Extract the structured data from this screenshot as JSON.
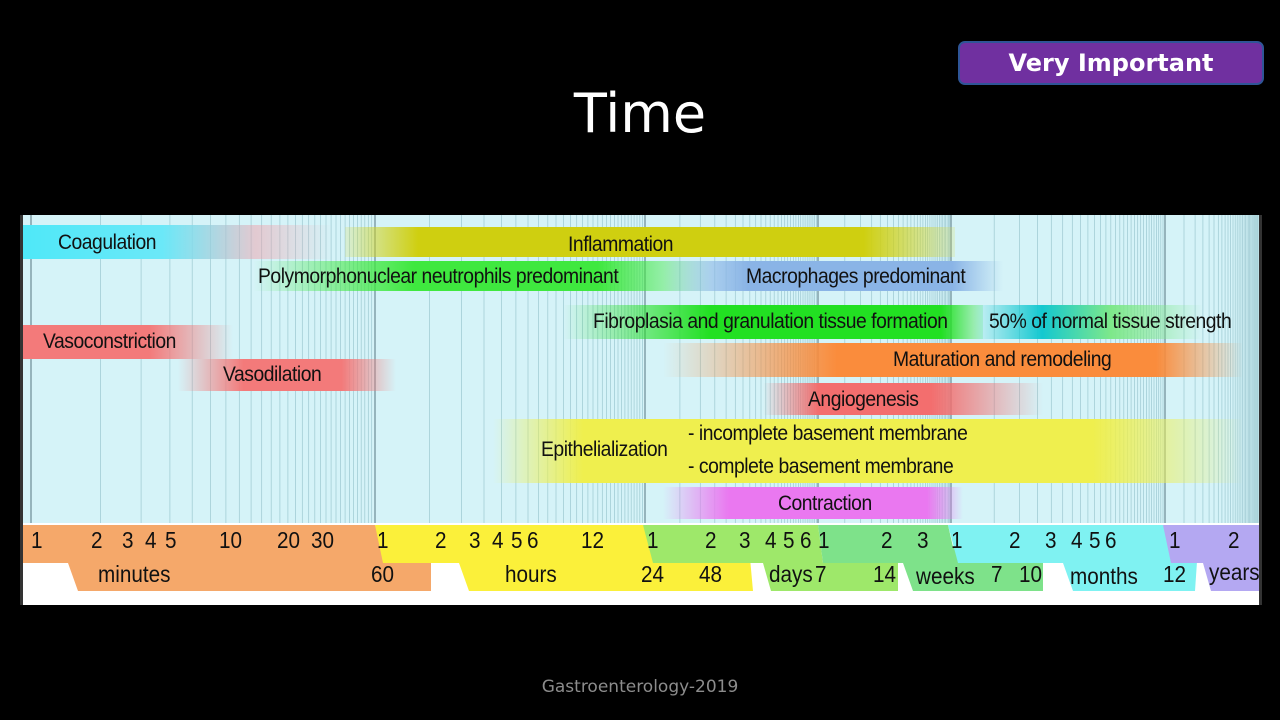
{
  "badge": "Very Important",
  "title": "Time",
  "footer": "Gastroenterology-2019",
  "phases": {
    "coagulation": "Coagulation",
    "inflammation": "Inflammation",
    "pmn": "Polymorphonuclear neutrophils predominant",
    "macrophages": "Macrophages predominant",
    "fibroplasia": "Fibroplasia and granulation tissue formation",
    "strength": "50% of normal tissue strength",
    "vasoconstriction": "Vasoconstriction",
    "maturation": "Maturation and remodeling",
    "vasodilation": "Vasodilation",
    "angiogenesis": "Angiogenesis",
    "epithelialization": "Epithelialization",
    "incomplete": "- incomplete basement membrane",
    "complete": "- complete basement membrane",
    "contraction": "Contraction"
  },
  "scale": {
    "minutes_unit": "minutes",
    "hours_unit": "hours",
    "days_unit": "days",
    "weeks_unit": "weeks",
    "months_unit": "months",
    "years_unit": "years",
    "minutes_ticks": [
      "1",
      "2",
      "3",
      "4",
      "5",
      "10",
      "20",
      "30",
      "60"
    ],
    "hours_ticks": [
      "1",
      "2",
      "3",
      "4",
      "5",
      "6",
      "12",
      "24",
      "48"
    ],
    "days_ticks": [
      "1",
      "2",
      "3",
      "4",
      "5",
      "6",
      "7",
      "14"
    ],
    "weeks_ticks": [
      "1",
      "2",
      "3",
      "7",
      "10"
    ],
    "months_ticks": [
      "1",
      "2",
      "3",
      "4",
      "5",
      "6",
      "12"
    ],
    "years_ticks": [
      "1",
      "2"
    ]
  },
  "colors": {
    "background": "#000000",
    "badge": "#7030a0",
    "chart_bg": "#d5f3f8",
    "minutes": "#f5a86a",
    "hours": "#fbf03a",
    "days": "#9ee86a",
    "weeks": "#7ee28a",
    "months": "#7ff2f2",
    "years": "#b4a8f2"
  }
}
